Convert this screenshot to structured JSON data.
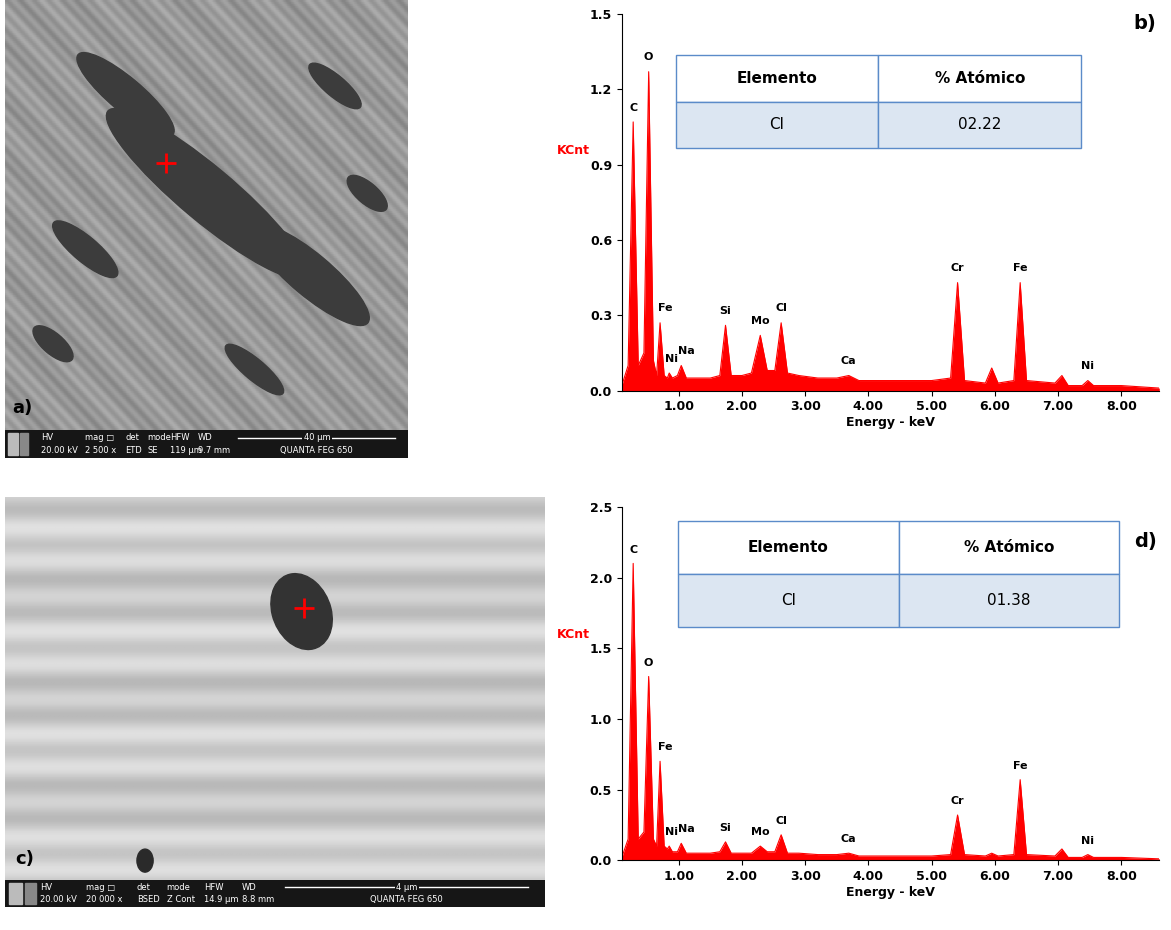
{
  "chart_data": [
    {
      "type": "area",
      "panel": "b)",
      "color": "#ff0000",
      "xlabel": "Energy - keV",
      "ylabel": "KCnt",
      "x": [
        0.1,
        0.2,
        0.28,
        0.36,
        0.45,
        0.525,
        0.6,
        0.65,
        0.705,
        0.77,
        0.82,
        0.85,
        0.9,
        0.98,
        1.04,
        1.12,
        1.3,
        1.5,
        1.65,
        1.74,
        1.83,
        2.0,
        2.15,
        2.29,
        2.4,
        2.52,
        2.62,
        2.72,
        2.9,
        3.2,
        3.5,
        3.69,
        3.85,
        4.2,
        4.6,
        5.0,
        5.3,
        5.41,
        5.52,
        5.85,
        5.95,
        6.05,
        6.3,
        6.4,
        6.5,
        6.95,
        7.06,
        7.16,
        7.38,
        7.47,
        7.56,
        8.0,
        8.6
      ],
      "values": [
        0.02,
        0.1,
        1.07,
        0.1,
        0.15,
        1.27,
        0.12,
        0.06,
        0.27,
        0.06,
        0.05,
        0.07,
        0.05,
        0.06,
        0.1,
        0.05,
        0.05,
        0.05,
        0.06,
        0.26,
        0.06,
        0.06,
        0.07,
        0.22,
        0.08,
        0.08,
        0.27,
        0.07,
        0.06,
        0.05,
        0.05,
        0.06,
        0.04,
        0.04,
        0.04,
        0.04,
        0.05,
        0.43,
        0.04,
        0.03,
        0.09,
        0.03,
        0.04,
        0.43,
        0.04,
        0.03,
        0.06,
        0.02,
        0.02,
        0.04,
        0.02,
        0.02,
        0.01
      ],
      "xlim": [
        0.1,
        8.6
      ],
      "ylim": [
        0.0,
        1.5
      ],
      "xticks": [
        {
          "value": 1,
          "label": "1.00"
        },
        {
          "value": 2,
          "label": "2.00"
        },
        {
          "value": 3,
          "label": "3.00"
        },
        {
          "value": 4,
          "label": "4.00"
        },
        {
          "value": 5,
          "label": "5.00"
        },
        {
          "value": 6,
          "label": "6.00"
        },
        {
          "value": 7,
          "label": "7.00"
        },
        {
          "value": 8,
          "label": "8.00"
        }
      ],
      "yticks": [
        0.0,
        0.3,
        0.6,
        0.9,
        1.2,
        1.5
      ],
      "annotations": [
        {
          "text": "C",
          "x": 0.28
        },
        {
          "text": "O",
          "x": 0.525
        },
        {
          "text": "Fe",
          "x": 0.78
        },
        {
          "text": "Ni",
          "x": 0.88
        },
        {
          "text": "Na",
          "x": 1.12
        },
        {
          "text": "Si",
          "x": 1.74
        },
        {
          "text": "Mo",
          "x": 2.29
        },
        {
          "text": "Cl",
          "x": 2.62
        },
        {
          "text": "Ca",
          "x": 3.69
        },
        {
          "text": "Cr",
          "x": 5.41
        },
        {
          "text": "Fe",
          "x": 6.4
        },
        {
          "text": "Ni",
          "x": 7.47
        }
      ],
      "table": {
        "header": [
          "Elemento",
          "% Atómico"
        ],
        "rows": [
          [
            "Cl",
            "02.22"
          ]
        ]
      }
    },
    {
      "type": "area",
      "panel": "d)",
      "color": "#ff0000",
      "xlabel": "Energy - keV",
      "ylabel": "KCnt",
      "x": [
        0.1,
        0.2,
        0.28,
        0.36,
        0.45,
        0.525,
        0.6,
        0.65,
        0.705,
        0.77,
        0.82,
        0.85,
        0.9,
        0.98,
        1.04,
        1.12,
        1.3,
        1.5,
        1.65,
        1.74,
        1.83,
        2.0,
        2.15,
        2.29,
        2.4,
        2.52,
        2.62,
        2.72,
        2.9,
        3.2,
        3.5,
        3.69,
        3.85,
        4.2,
        4.6,
        5.0,
        5.3,
        5.41,
        5.52,
        5.85,
        5.95,
        6.05,
        6.3,
        6.4,
        6.5,
        6.95,
        7.06,
        7.16,
        7.38,
        7.47,
        7.56,
        8.0,
        8.6
      ],
      "values": [
        0.02,
        0.15,
        2.1,
        0.15,
        0.2,
        1.3,
        0.15,
        0.1,
        0.7,
        0.1,
        0.08,
        0.1,
        0.06,
        0.06,
        0.12,
        0.05,
        0.05,
        0.05,
        0.06,
        0.13,
        0.05,
        0.05,
        0.05,
        0.1,
        0.06,
        0.06,
        0.18,
        0.05,
        0.05,
        0.04,
        0.04,
        0.05,
        0.03,
        0.03,
        0.03,
        0.03,
        0.04,
        0.32,
        0.04,
        0.03,
        0.05,
        0.03,
        0.04,
        0.57,
        0.04,
        0.03,
        0.08,
        0.02,
        0.02,
        0.04,
        0.02,
        0.02,
        0.01
      ],
      "xlim": [
        0.1,
        8.6
      ],
      "ylim": [
        0.0,
        2.5
      ],
      "xticks": [
        {
          "value": 1,
          "label": "1.00"
        },
        {
          "value": 2,
          "label": "2.00"
        },
        {
          "value": 3,
          "label": "3.00"
        },
        {
          "value": 4,
          "label": "4.00"
        },
        {
          "value": 5,
          "label": "5.00"
        },
        {
          "value": 6,
          "label": "6.00"
        },
        {
          "value": 7,
          "label": "7.00"
        },
        {
          "value": 8,
          "label": "8.00"
        }
      ],
      "yticks": [
        0.0,
        0.5,
        1.0,
        1.5,
        2.0,
        2.5
      ],
      "annotations": [
        {
          "text": "C",
          "x": 0.28
        },
        {
          "text": "O",
          "x": 0.525
        },
        {
          "text": "Fe",
          "x": 0.78
        },
        {
          "text": "Ni",
          "x": 0.88
        },
        {
          "text": "Na",
          "x": 1.12
        },
        {
          "text": "Si",
          "x": 1.74
        },
        {
          "text": "Mo",
          "x": 2.29
        },
        {
          "text": "Cl",
          "x": 2.62
        },
        {
          "text": "Ca",
          "x": 3.69
        },
        {
          "text": "Cr",
          "x": 5.41
        },
        {
          "text": "Fe",
          "x": 6.4
        },
        {
          "text": "Ni",
          "x": 7.47
        }
      ],
      "table": {
        "header": [
          "Elemento",
          "% Atómico"
        ],
        "rows": [
          [
            "Cl",
            "01.38"
          ]
        ]
      }
    }
  ],
  "images": [
    {
      "panel": "a)",
      "info_bar": {
        "headers": [
          "HV",
          "mag □",
          "det",
          "mode",
          "HFW",
          "WD"
        ],
        "values": [
          "20.00 kV",
          "2 500 x",
          "ETD",
          "SE",
          "119 µm",
          "9.7 mm"
        ]
      },
      "scale_bar": "40 µm",
      "instrument": "QUANTA FEG 650"
    },
    {
      "panel": "c)",
      "info_bar": {
        "headers": [
          "HV",
          "mag □",
          "det",
          "mode",
          "HFW",
          "WD"
        ],
        "values": [
          "20.00 kV",
          "20 000 x",
          "BSED",
          "Z Cont",
          "14.9 µm",
          "8.8 mm"
        ]
      },
      "scale_bar": "4 µm",
      "instrument": "QUANTA FEG 650"
    }
  ]
}
